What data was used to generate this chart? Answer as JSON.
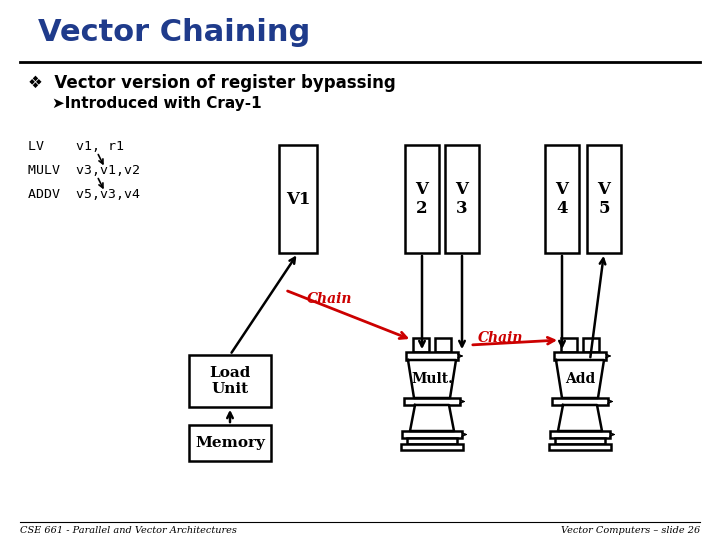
{
  "title": "Vector Chaining",
  "title_color": "#1F3B8B",
  "bullet1": "❖  Vector version of register bypassing",
  "bullet2": "➤Introduced with Cray-1",
  "code_lines": [
    "LV    v1, r1",
    "MULV  v3,v1,v2",
    "ADDV  v5,v3,v4"
  ],
  "background_color": "#FFFFFF",
  "footer_left": "CSE 661 - Parallel and Vector Architectures",
  "footer_right": "Vector Computers – slide 26",
  "chain_color": "#CC0000",
  "lw": 1.8
}
